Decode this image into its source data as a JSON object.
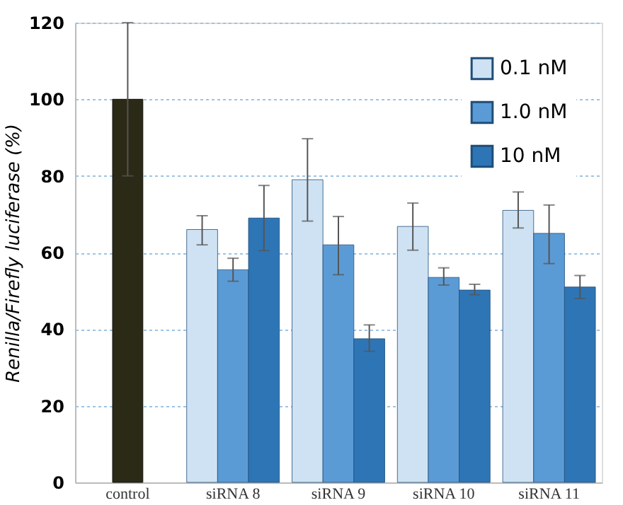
{
  "chart_data": {
    "type": "bar",
    "ylabel": "Renilla/Firefly luciferase (%)",
    "categories": [
      "control",
      "siRNA 8",
      "siRNA 9",
      "siRNA 10",
      "siRNA 11"
    ],
    "series": [
      {
        "color": "#2b2a17",
        "values": [
          100,
          null,
          null,
          null,
          null
        ],
        "errors": [
          [
            80,
            120
          ],
          null,
          null,
          null,
          null
        ]
      },
      {
        "name": "0.1 nM",
        "color": "#cfe2f3",
        "values": [
          null,
          66,
          79,
          66.8,
          71
        ],
        "errors": [
          null,
          [
            62,
            69.6
          ],
          [
            68.2,
            89.7
          ],
          [
            60.6,
            72.9
          ],
          [
            66.4,
            75.8
          ]
        ]
      },
      {
        "name": "1.0 nM",
        "color": "#5b9bd5",
        "values": [
          null,
          55.5,
          62,
          53.5,
          65
        ],
        "errors": [
          null,
          [
            52.5,
            58.5
          ],
          [
            54.2,
            69.4
          ],
          [
            51.5,
            56
          ],
          [
            57.1,
            72.4
          ]
        ]
      },
      {
        "name": "10 nM",
        "color": "#2e75b6",
        "values": [
          null,
          69,
          37.5,
          50.2,
          51
        ],
        "errors": [
          null,
          [
            60.5,
            77.5
          ],
          [
            34.2,
            41.1
          ],
          [
            49,
            51.7
          ],
          [
            48,
            54
          ]
        ]
      }
    ],
    "ylim": [
      0,
      120
    ],
    "yticks": [
      0,
      20,
      40,
      60,
      80,
      100,
      120
    ],
    "grid": "y",
    "legend": "top right"
  }
}
